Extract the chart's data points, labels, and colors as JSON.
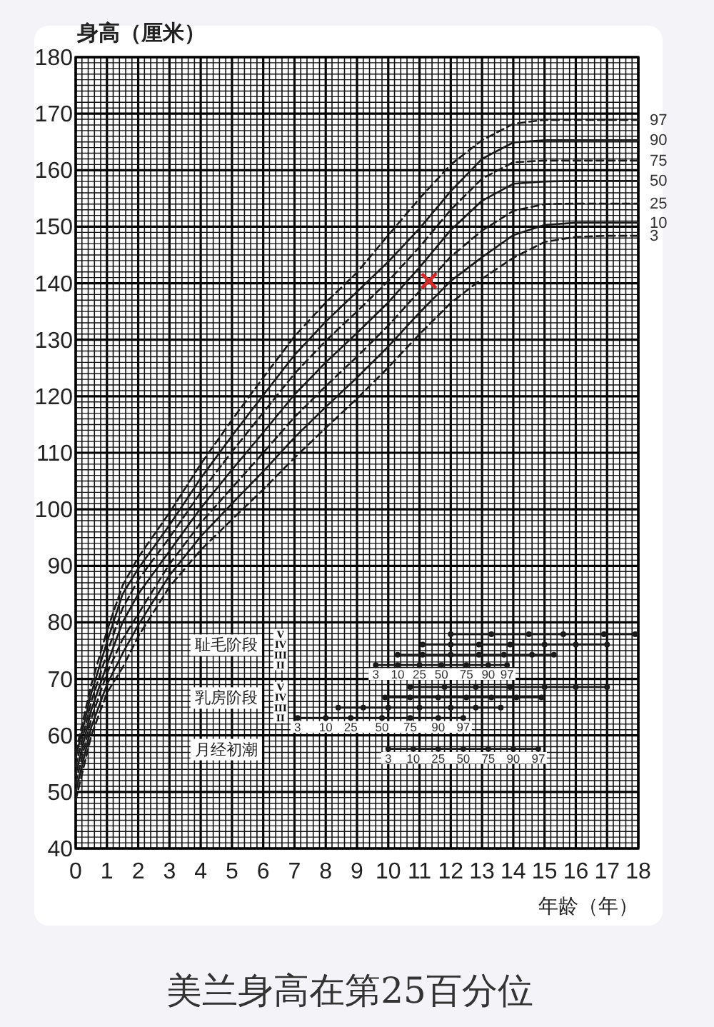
{
  "chart_data": [
    {
      "type": "line",
      "xlabel": "年龄（年）",
      "ylabel": "身高（厘米）",
      "xlim": [
        0,
        18
      ],
      "xticks": [
        0,
        1,
        2,
        3,
        4,
        5,
        6,
        7,
        8,
        9,
        10,
        11,
        12,
        13,
        14,
        15,
        16,
        17,
        18
      ],
      "ylim": [
        40,
        180
      ],
      "yticks": [
        40,
        50,
        60,
        70,
        80,
        90,
        100,
        110,
        120,
        130,
        140,
        150,
        160,
        170,
        180
      ],
      "grid": true,
      "x": [
        0,
        0.5,
        1,
        1.5,
        2,
        3,
        4,
        5,
        6,
        7,
        8,
        9,
        10,
        11,
        12,
        13,
        14,
        15,
        16,
        17,
        18
      ],
      "series": [
        {
          "name": "97",
          "color": "#1a1a1a",
          "line_style": "dashed",
          "marker": "none",
          "values": [
            57,
            69,
            78.5,
            86.5,
            91.5,
            99.4,
            108.0,
            115.8,
            123.3,
            130.6,
            136.6,
            141.9,
            148.5,
            155.0,
            161.0,
            165.3,
            168.2,
            168.9,
            168.9,
            168.9,
            168.9
          ]
        },
        {
          "name": "90",
          "color": "#1a1a1a",
          "line_style": "solid",
          "marker": "none",
          "values": [
            56,
            67.5,
            76.5,
            85,
            89.5,
            97.2,
            105.5,
            113.0,
            120.2,
            127.3,
            133.2,
            138.5,
            143.8,
            149.7,
            156.3,
            162.0,
            164.9,
            165.3,
            165.3,
            165.3,
            165.3
          ]
        },
        {
          "name": "75",
          "color": "#1a1a1a",
          "line_style": "dashed",
          "marker": "none",
          "values": [
            54.5,
            66,
            74.5,
            82.5,
            87.5,
            95.0,
            103.0,
            110.2,
            117.1,
            124.0,
            129.8,
            135.0,
            140.4,
            146.4,
            153.0,
            158.5,
            161.4,
            161.7,
            161.7,
            161.7,
            161.7
          ]
        },
        {
          "name": "50",
          "color": "#1a1a1a",
          "line_style": "solid",
          "marker": "none",
          "values": [
            53,
            64.5,
            72.5,
            80,
            85,
            92.6,
            100.2,
            107.0,
            113.6,
            120.3,
            126.0,
            131.2,
            136.6,
            142.8,
            149.4,
            154.6,
            157.6,
            158.0,
            158.1,
            158.1,
            158.1
          ]
        },
        {
          "name": "25",
          "color": "#1a1a1a",
          "line_style": "dashed",
          "marker": "none",
          "values": [
            51.5,
            63,
            71,
            77,
            81.5,
            90.3,
            97.6,
            103.8,
            110.0,
            116.3,
            121.8,
            127.0,
            132.5,
            138.6,
            144.7,
            149.3,
            152.8,
            154.0,
            154.1,
            154.1,
            154.1
          ]
        },
        {
          "name": "10",
          "color": "#1a1a1a",
          "line_style": "solid",
          "marker": "none",
          "values": [
            50,
            61.5,
            69,
            74.5,
            79.5,
            88.3,
            95.2,
            101.0,
            106.7,
            112.7,
            118.1,
            123.3,
            128.8,
            134.8,
            140.4,
            144.6,
            148.5,
            150.3,
            150.7,
            150.7,
            150.7
          ]
        },
        {
          "name": "3",
          "color": "#1a1a1a",
          "line_style": "dashed",
          "marker": "none",
          "values": [
            48.5,
            60,
            67.5,
            72,
            77.5,
            86.3,
            92.8,
            98.2,
            103.5,
            109.1,
            114.4,
            119.6,
            125.1,
            131.0,
            136.5,
            140.8,
            144.5,
            147.3,
            148.2,
            148.4,
            148.4
          ]
        },
        {
          "type": "scatter",
          "color": "#d42a2a",
          "marker": "cross",
          "x": [
            11.3
          ],
          "values": [
            140.4
          ]
        }
      ],
      "annotations": [
        "美兰身高在第25百分位"
      ]
    },
    {
      "type": "bar",
      "orientation": "horizontal",
      "ylabel": "耻毛阶段",
      "categories": [
        "V",
        "IV",
        "III",
        "II"
      ],
      "xlim": [
        0,
        18
      ],
      "tick_labels": "y",
      "series": [
        {
          "color": "#1a1a1a",
          "base": [
            12.0,
            11.1,
            10.3,
            9.6
          ],
          "values": [
            6.0,
            5.9,
            5.0,
            4.2
          ]
        },
        {
          "type": "scatter",
          "name": "3",
          "color": "#1a1a1a",
          "marker": "circle",
          "values": [
            12.0,
            11.1,
            10.3,
            9.6
          ]
        },
        {
          "type": "scatter",
          "name": "10",
          "color": "#1a1a1a",
          "marker": "circle",
          "values": [
            13.3,
            12.0,
            11.1,
            10.3
          ]
        },
        {
          "type": "scatter",
          "name": "25",
          "color": "#1a1a1a",
          "marker": "circle",
          "values": [
            14.5,
            12.9,
            12.0,
            11.0
          ]
        },
        {
          "type": "scatter",
          "name": "50",
          "color": "#1a1a1a",
          "marker": "circle",
          "values": [
            15.6,
            13.9,
            12.9,
            11.7
          ]
        },
        {
          "type": "scatter",
          "name": "75",
          "color": "#1a1a1a",
          "marker": "circle",
          "values": [
            16.9,
            15.0,
            13.7,
            12.5
          ]
        },
        {
          "type": "scatter",
          "name": "90",
          "color": "#1a1a1a",
          "marker": "circle",
          "values": [
            17.9,
            16.0,
            14.6,
            13.2
          ]
        },
        {
          "type": "scatter",
          "name": "97",
          "color": "#1a1a1a",
          "marker": "circle",
          "values": [
            null,
            17.0,
            15.3,
            13.8
          ]
        }
      ]
    },
    {
      "type": "bar",
      "orientation": "horizontal",
      "ylabel": "乳房阶段",
      "categories": [
        "V",
        "IV",
        "III",
        "II"
      ],
      "xlim": [
        0,
        18
      ],
      "tick_labels": "y",
      "series": [
        {
          "color": "#1a1a1a",
          "base": [
            10.7,
            9.9,
            8.4,
            7.1
          ],
          "values": [
            6.3,
            5.0,
            5.2,
            5.3
          ]
        },
        {
          "type": "scatter",
          "name": "3",
          "color": "#1a1a1a",
          "marker": "circle",
          "values": [
            10.7,
            9.9,
            8.4,
            7.1
          ]
        },
        {
          "type": "scatter",
          "name": "10",
          "color": "#1a1a1a",
          "marker": "circle",
          "values": [
            11.8,
            10.7,
            9.2,
            8.0
          ]
        },
        {
          "type": "scatter",
          "name": "25",
          "color": "#1a1a1a",
          "marker": "circle",
          "values": [
            12.8,
            11.6,
            10.0,
            8.8
          ]
        },
        {
          "type": "scatter",
          "name": "50",
          "color": "#1a1a1a",
          "marker": "circle",
          "values": [
            13.9,
            12.5,
            11.0,
            9.8
          ]
        },
        {
          "type": "scatter",
          "name": "75",
          "color": "#1a1a1a",
          "marker": "circle",
          "values": [
            15.0,
            13.3,
            12.0,
            10.7
          ]
        },
        {
          "type": "scatter",
          "name": "90",
          "color": "#1a1a1a",
          "marker": "circle",
          "values": [
            16.0,
            14.1,
            12.8,
            11.6
          ]
        },
        {
          "type": "scatter",
          "name": "97",
          "color": "#1a1a1a",
          "marker": "circle",
          "values": [
            17.0,
            14.9,
            13.6,
            12.4
          ]
        }
      ]
    },
    {
      "type": "bar",
      "orientation": "horizontal",
      "categories": [
        "月经初潮"
      ],
      "xlim": [
        0,
        18
      ],
      "tick_labels": "y",
      "series": [
        {
          "color": "#1a1a1a",
          "base": [
            10.0
          ],
          "values": [
            4.8
          ]
        },
        {
          "type": "scatter",
          "name": "3",
          "color": "#1a1a1a",
          "marker": "circle",
          "values": [
            10.0
          ]
        },
        {
          "type": "scatter",
          "name": "10",
          "color": "#1a1a1a",
          "marker": "circle",
          "values": [
            10.8
          ]
        },
        {
          "type": "scatter",
          "name": "25",
          "color": "#1a1a1a",
          "marker": "circle",
          "values": [
            11.6
          ]
        },
        {
          "type": "scatter",
          "name": "50",
          "color": "#1a1a1a",
          "marker": "circle",
          "values": [
            12.4
          ]
        },
        {
          "type": "scatter",
          "name": "75",
          "color": "#1a1a1a",
          "marker": "circle",
          "values": [
            13.2
          ]
        },
        {
          "type": "scatter",
          "name": "90",
          "color": "#1a1a1a",
          "marker": "circle",
          "values": [
            14.0
          ]
        },
        {
          "type": "scatter",
          "name": "97",
          "color": "#1a1a1a",
          "marker": "circle",
          "values": [
            14.8
          ]
        }
      ]
    }
  ]
}
